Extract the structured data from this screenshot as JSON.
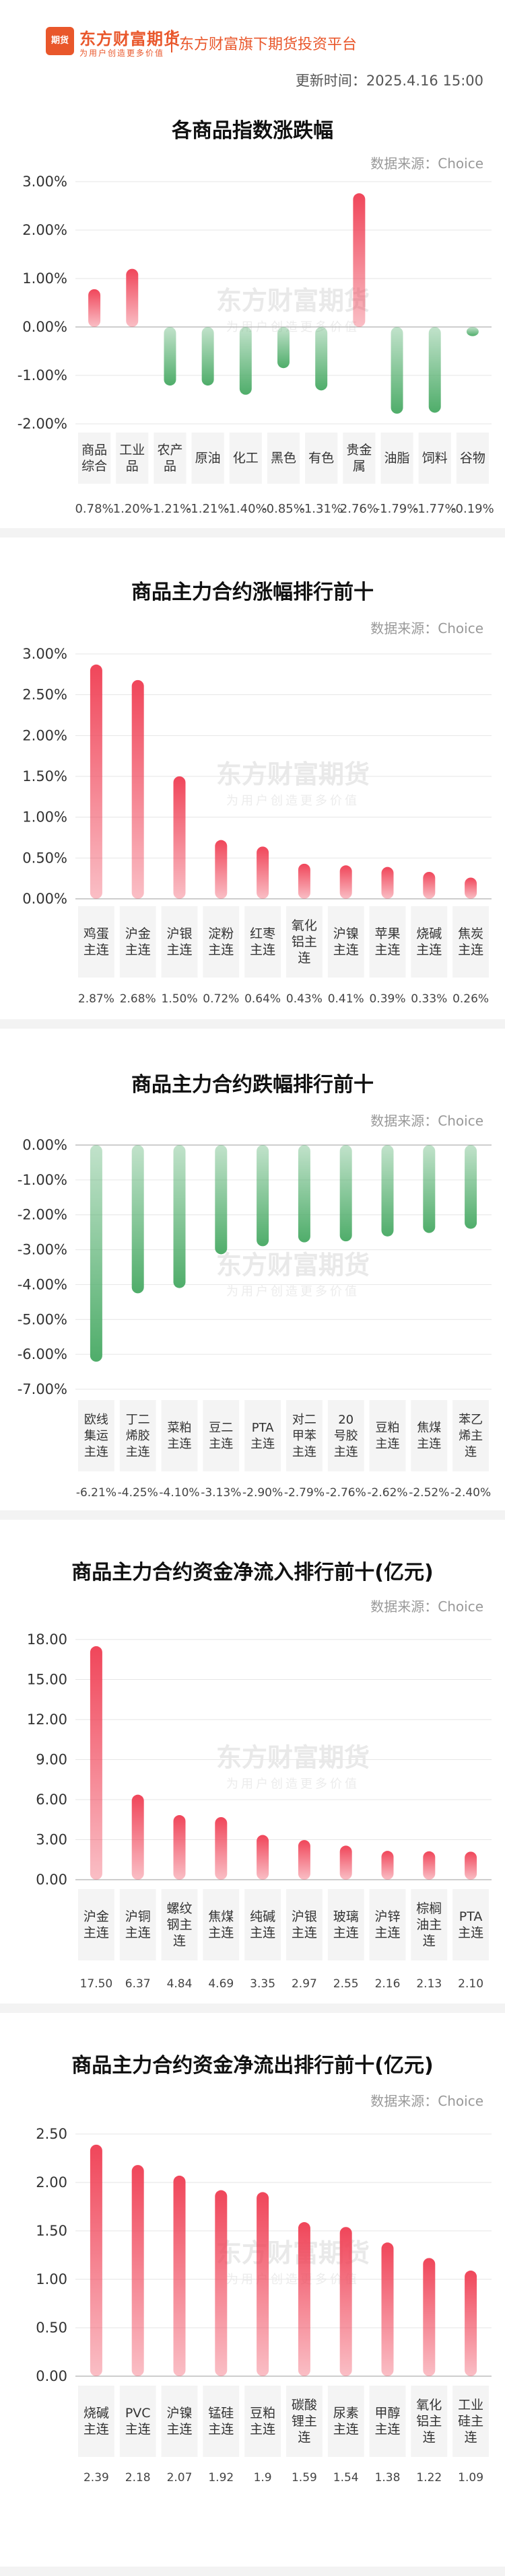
{
  "header": {
    "logo_mark": "期货",
    "logo_name": "东方财富期货",
    "logo_slogan": "为用户创造更多价值",
    "platform": "东方财富旗下期货投资平台",
    "update_time": "更新时间：2025.4.16 15:00"
  },
  "source_label": "数据来源：Choice",
  "watermark": {
    "name": "东方财富期货",
    "slogan": "为用户创造更多价值"
  },
  "colors": {
    "up": "#f0465a",
    "down": "#4fad6a",
    "grid": "#e6e6e6",
    "label_bg": "#f4f4f4"
  },
  "chart_data": [
    {
      "type": "bar",
      "title": "各商品指数涨跌幅",
      "categories": [
        "商品综合",
        "工业品",
        "农产品",
        "原油",
        "化工",
        "黑色",
        "有色",
        "贵金属",
        "油脂",
        "饲料",
        "谷物"
      ],
      "values": [
        0.78,
        1.2,
        -1.21,
        -1.21,
        -1.4,
        -0.85,
        -1.31,
        2.76,
        -1.79,
        -1.77,
        -0.19
      ],
      "value_labels": [
        "0.78%",
        "1.20%",
        "-1.21%",
        "-1.21%",
        "-1.40%",
        "-0.85%",
        "-1.31%",
        "2.76%",
        "-1.79%",
        "-1.77%",
        "-0.19%"
      ],
      "yticks": [
        "3.00%",
        "2.00%",
        "1.00%",
        "0.00%",
        "-1.00%",
        "-2.00%"
      ],
      "ylim": [
        -2,
        3
      ]
    },
    {
      "type": "bar",
      "title": "商品主力合约涨幅排行前十",
      "categories": [
        "鸡蛋主连",
        "沪金主连",
        "沪银主连",
        "淀粉主连",
        "红枣主连",
        "氧化铝主连",
        "沪镍主连",
        "苹果主连",
        "烧碱主连",
        "焦炭主连"
      ],
      "values": [
        2.87,
        2.68,
        1.5,
        0.72,
        0.64,
        0.43,
        0.41,
        0.39,
        0.33,
        0.26
      ],
      "value_labels": [
        "2.87%",
        "2.68%",
        "1.50%",
        "0.72%",
        "0.64%",
        "0.43%",
        "0.41%",
        "0.39%",
        "0.33%",
        "0.26%"
      ],
      "yticks": [
        "3.00%",
        "2.50%",
        "2.00%",
        "1.50%",
        "1.00%",
        "0.50%",
        "0.00%"
      ],
      "ylim": [
        0,
        3
      ]
    },
    {
      "type": "bar",
      "title": "商品主力合约跌幅排行前十",
      "categories": [
        "欧线集运主连",
        "丁二烯胶主连",
        "菜粕主连",
        "豆二主连",
        "PTA主连",
        "对二甲苯主连",
        "20号胶主连",
        "豆粕主连",
        "焦煤主连",
        "苯乙烯主连"
      ],
      "values": [
        -6.21,
        -4.25,
        -4.1,
        -3.13,
        -2.9,
        -2.79,
        -2.76,
        -2.62,
        -2.52,
        -2.4
      ],
      "value_labels": [
        "-6.21%",
        "-4.25%",
        "-4.10%",
        "-3.13%",
        "-2.90%",
        "-2.79%",
        "-2.76%",
        "-2.62%",
        "-2.52%",
        "-2.40%"
      ],
      "yticks": [
        "0.00%",
        "-1.00%",
        "-2.00%",
        "-3.00%",
        "-4.00%",
        "-5.00%",
        "-6.00%",
        "-7.00%"
      ],
      "ylim": [
        -7,
        0
      ]
    },
    {
      "type": "bar",
      "title": "商品主力合约资金净流入排行前十(亿元)",
      "categories": [
        "沪金主连",
        "沪铜主连",
        "螺纹钢主连",
        "焦煤主连",
        "纯碱主连",
        "沪银主连",
        "玻璃主连",
        "沪锌主连",
        "棕榈油主连",
        "PTA主连"
      ],
      "values": [
        17.5,
        6.37,
        4.84,
        4.69,
        3.35,
        2.97,
        2.55,
        2.16,
        2.13,
        2.1
      ],
      "value_labels": [
        "17.50",
        "6.37",
        "4.84",
        "4.69",
        "3.35",
        "2.97",
        "2.55",
        "2.16",
        "2.13",
        "2.10"
      ],
      "yticks": [
        "18.00",
        "15.00",
        "12.00",
        "9.00",
        "6.00",
        "3.00",
        "0.00"
      ],
      "ylim": [
        0,
        18
      ]
    },
    {
      "type": "bar",
      "title": "商品主力合约资金净流出排行前十(亿元)",
      "categories": [
        "烧碱主连",
        "PVC主连",
        "沪镍主连",
        "锰硅主连",
        "豆粕主连",
        "碳酸锂主连",
        "尿素主连",
        "甲醇主连",
        "氧化铝主连",
        "工业硅主连"
      ],
      "values": [
        2.39,
        2.18,
        2.07,
        1.92,
        1.9,
        1.59,
        1.54,
        1.38,
        1.22,
        1.09
      ],
      "value_labels": [
        "2.39",
        "2.18",
        "2.07",
        "1.92",
        "1.9",
        "1.59",
        "1.54",
        "1.38",
        "1.22",
        "1.09"
      ],
      "yticks": [
        "2.50",
        "2.00",
        "1.50",
        "1.00",
        "0.50",
        "0.00"
      ],
      "ylim": [
        0,
        2.5
      ]
    }
  ]
}
